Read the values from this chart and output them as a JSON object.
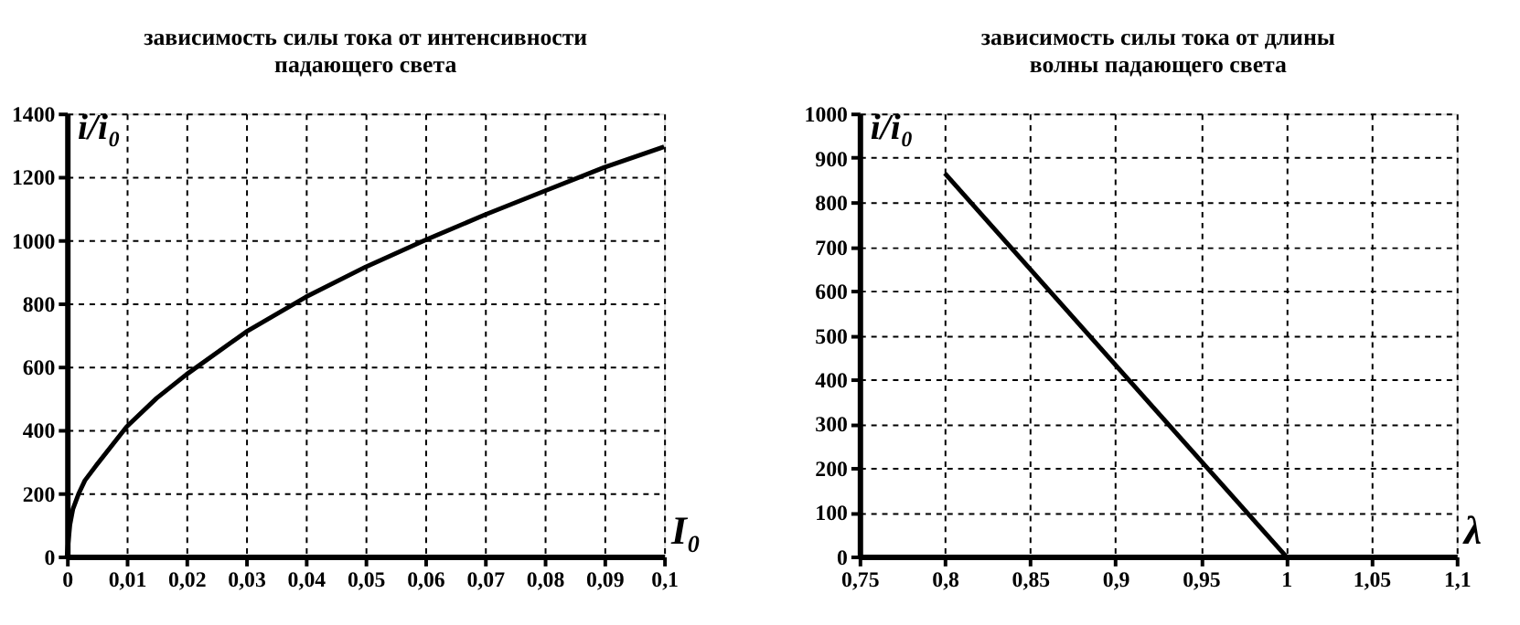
{
  "chart_data": [
    {
      "type": "line",
      "title": "зависимость силы тока от интенсивности\nпадающего света",
      "xlabel": "I₀",
      "ylabel": "i/i₀",
      "grid": true,
      "marker": "none",
      "line_style": "solid",
      "x": [
        0,
        0.0005,
        0.001,
        0.002,
        0.003,
        0.005,
        0.01,
        0.015,
        0.02,
        0.03,
        0.04,
        0.05,
        0.06,
        0.07,
        0.08,
        0.09,
        0.1
      ],
      "series": [
        {
          "color": "#000000",
          "values": [
            0,
            100,
            150,
            200,
            240,
            290,
            410,
            500,
            575,
            710,
            820,
            915,
            1000,
            1080,
            1155,
            1230,
            1295
          ]
        }
      ],
      "xlim": [
        0,
        0.1
      ],
      "ylim": [
        0,
        1400
      ],
      "xticks": [
        0,
        {
          "value": 0.01,
          "label": "0,01"
        },
        {
          "value": 0.02,
          "label": "0,02"
        },
        {
          "value": 0.03,
          "label": "0,03"
        },
        {
          "value": 0.04,
          "label": "0,04"
        },
        {
          "value": 0.05,
          "label": "0,05"
        },
        {
          "value": 0.06,
          "label": "0,06"
        },
        {
          "value": 0.07,
          "label": "0,07"
        },
        {
          "value": 0.08,
          "label": "0,08"
        },
        {
          "value": 0.09,
          "label": "0,09"
        },
        {
          "value": 0.1,
          "label": "0,1"
        }
      ],
      "yticks": [
        0,
        200,
        400,
        600,
        800,
        1000,
        1200,
        1400
      ]
    },
    {
      "type": "line",
      "title": "зависимость силы тока от длины\nволны падающего света",
      "xlabel": "λ",
      "ylabel": "i/i₀",
      "grid": true,
      "marker": "none",
      "line_style": "solid",
      "x": [
        0.8,
        1.0
      ],
      "series": [
        {
          "color": "#000000",
          "values": [
            865,
            0
          ]
        }
      ],
      "xlim": [
        0.75,
        1.1
      ],
      "ylim": [
        0,
        1000
      ],
      "xticks": [
        {
          "value": 0.75,
          "label": "0,75"
        },
        {
          "value": 0.8,
          "label": "0,8"
        },
        {
          "value": 0.85,
          "label": "0,85"
        },
        {
          "value": 0.9,
          "label": "0,9"
        },
        {
          "value": 0.95,
          "label": "0,95"
        },
        1,
        {
          "value": 1.05,
          "label": "1,05"
        },
        {
          "value": 1.1,
          "label": "1,1"
        }
      ],
      "yticks": [
        0,
        100,
        200,
        300,
        400,
        500,
        600,
        700,
        800,
        900,
        1000
      ]
    }
  ]
}
